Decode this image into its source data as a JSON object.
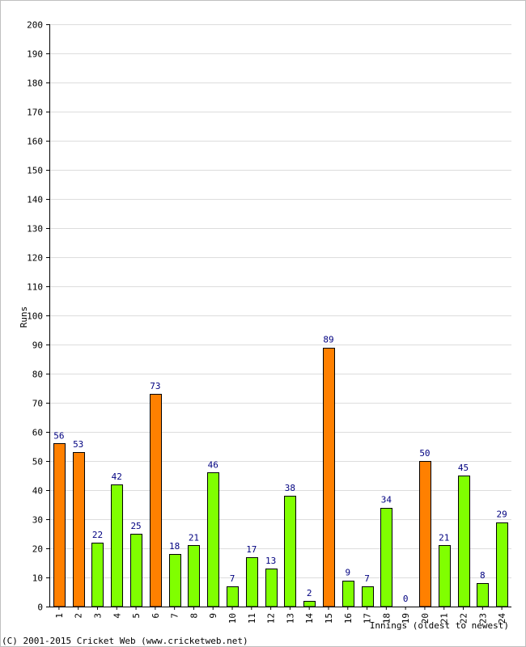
{
  "chart_data": {
    "type": "bar",
    "categories": [
      "1",
      "2",
      "3",
      "4",
      "5",
      "6",
      "7",
      "8",
      "9",
      "10",
      "11",
      "12",
      "13",
      "14",
      "15",
      "16",
      "17",
      "18",
      "19",
      "20",
      "21",
      "22",
      "23",
      "24"
    ],
    "values": [
      56,
      53,
      22,
      42,
      25,
      73,
      18,
      21,
      46,
      7,
      17,
      13,
      38,
      2,
      89,
      9,
      7,
      34,
      0,
      50,
      21,
      45,
      8,
      29
    ],
    "highlight": [
      true,
      true,
      false,
      false,
      false,
      true,
      false,
      false,
      false,
      false,
      false,
      false,
      false,
      false,
      true,
      false,
      false,
      false,
      false,
      true,
      false,
      false,
      false,
      false
    ],
    "ylabel": "Runs",
    "xlabel": "Innings (oldest to newest)",
    "ylim": [
      0,
      200
    ],
    "ytick_step": 10,
    "grid": true,
    "colors": {
      "highlight": "#ff8000",
      "normal": "#80ff00",
      "label": "#000080",
      "grid": "#dddddd"
    }
  },
  "footer": {
    "copyright": "(C) 2001-2015 Cricket Web (www.cricketweb.net)"
  }
}
